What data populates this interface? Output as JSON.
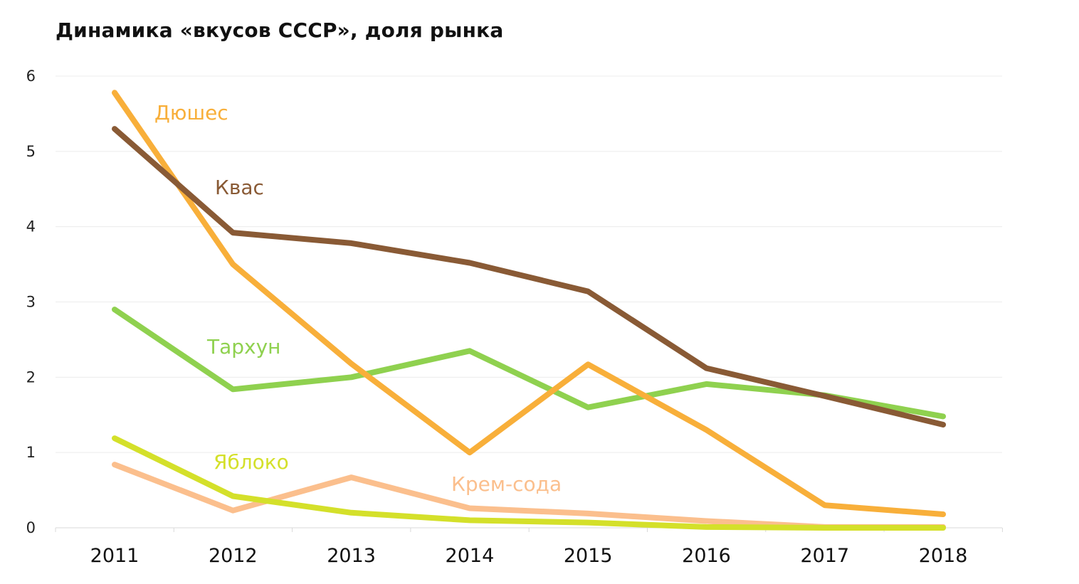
{
  "chart_data": {
    "type": "line",
    "title": "Динамика «вкусов СССР», доля рынка",
    "xlabel": "",
    "ylabel": "",
    "x": [
      "2011",
      "2012",
      "2013",
      "2014",
      "2015",
      "2016",
      "2017",
      "2018"
    ],
    "ylim": [
      0,
      6
    ],
    "yticks": [
      "0",
      "1",
      "2",
      "3",
      "4",
      "5",
      "6"
    ],
    "grid": true,
    "legend": "inline labels",
    "series": [
      {
        "name": "Дюшес",
        "color": "#f8af3a",
        "values": [
          5.78,
          3.5,
          2.18,
          1.0,
          2.17,
          1.3,
          0.3,
          0.18
        ]
      },
      {
        "name": "Квас",
        "color": "#895a35",
        "values": [
          5.3,
          3.92,
          3.78,
          3.52,
          3.14,
          2.12,
          1.75,
          1.37
        ]
      },
      {
        "name": "Тархун",
        "color": "#8fd14f",
        "values": [
          2.9,
          1.84,
          2.0,
          2.35,
          1.6,
          1.91,
          1.76,
          1.48
        ]
      },
      {
        "name": "Яблоко",
        "color": "#d4e02a",
        "values": [
          1.19,
          0.42,
          0.2,
          0.1,
          0.07,
          0.01,
          0.0,
          0.0
        ]
      },
      {
        "name": "Крем-сода",
        "color": "#fbbf8d",
        "values": [
          0.84,
          0.23,
          0.67,
          0.26,
          0.19,
          0.09,
          0.01,
          0.01
        ]
      }
    ]
  }
}
